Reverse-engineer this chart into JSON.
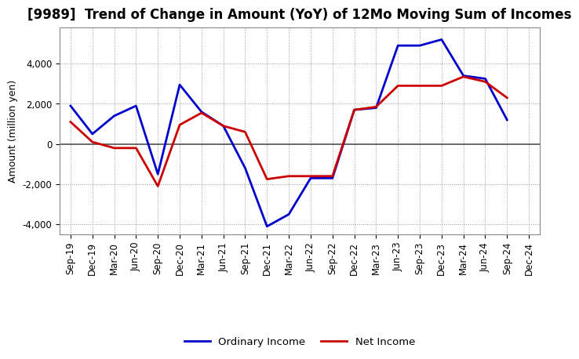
{
  "title": "[9989]  Trend of Change in Amount (YoY) of 12Mo Moving Sum of Incomes",
  "ylabel": "Amount (million yen)",
  "x_labels": [
    "Sep-19",
    "Dec-19",
    "Mar-20",
    "Jun-20",
    "Sep-20",
    "Dec-20",
    "Mar-21",
    "Jun-21",
    "Sep-21",
    "Dec-21",
    "Mar-22",
    "Jun-22",
    "Sep-22",
    "Dec-22",
    "Mar-23",
    "Jun-23",
    "Sep-23",
    "Dec-23",
    "Mar-24",
    "Jun-24",
    "Sep-24",
    "Dec-24"
  ],
  "ordinary_income": [
    1900,
    500,
    1400,
    1900,
    -1500,
    2950,
    1600,
    900,
    -1200,
    -4100,
    -3500,
    -1700,
    -1700,
    1700,
    1800,
    4900,
    4900,
    5200,
    3400,
    3250,
    1200,
    null
  ],
  "net_income": [
    1100,
    100,
    -200,
    -200,
    -2100,
    950,
    1550,
    900,
    600,
    -1750,
    -1600,
    -1600,
    -1600,
    1700,
    1850,
    2900,
    2900,
    2900,
    3350,
    3100,
    2300,
    null
  ],
  "ordinary_income_color": "#0000cc",
  "net_income_color": "#cc0000",
  "ylim": [
    -4500,
    5800
  ],
  "yticks": [
    -4000,
    -2000,
    0,
    2000,
    4000
  ],
  "background_color": "#ffffff",
  "grid_color": "#999999",
  "legend_labels": [
    "Ordinary Income",
    "Net Income"
  ],
  "title_fontsize": 12,
  "ylabel_fontsize": 9,
  "tick_fontsize": 8.5
}
